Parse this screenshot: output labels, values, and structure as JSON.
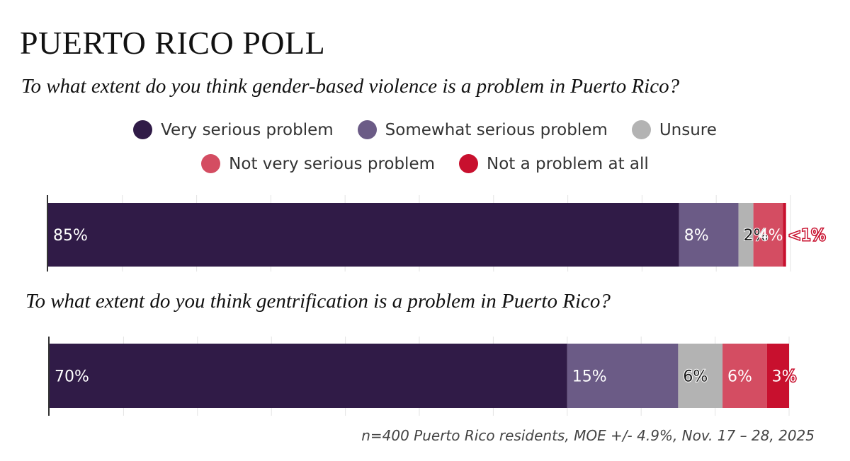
{
  "title": "PUERTO RICO POLL",
  "footer": "n=400 Puerto Rico residents, MOE +/- 4.9%, Nov. 17 – 28, 2025",
  "legend": [
    {
      "label": "Very serious problem",
      "color": "#301b47"
    },
    {
      "label": "Somewhat serious problem",
      "color": "#6b5b86"
    },
    {
      "label": "Unsure",
      "color": "#b3b3b3"
    },
    {
      "label": "Not very serious problem",
      "color": "#d44d62"
    },
    {
      "label": "Not a problem at all",
      "color": "#c8102e"
    }
  ],
  "chart_data": [
    {
      "type": "bar",
      "orientation": "horizontal",
      "stacked": true,
      "title": "To what extent do you think gender-based violence is a problem in Puerto Rico?",
      "xlim": [
        0,
        100
      ],
      "grid": true,
      "series": [
        {
          "name": "Very serious problem",
          "value": 85,
          "label": "85%"
        },
        {
          "name": "Somewhat serious problem",
          "value": 8,
          "label": "8%"
        },
        {
          "name": "Unsure",
          "value": 2,
          "label": "2%"
        },
        {
          "name": "Not very serious problem",
          "value": 4,
          "label": "4%"
        },
        {
          "name": "Not a problem at all",
          "value": 0.4,
          "label": "<1%"
        }
      ]
    },
    {
      "type": "bar",
      "orientation": "horizontal",
      "stacked": true,
      "title": "To what extent do you think gentrification is a problem in Puerto Rico?",
      "xlim": [
        0,
        100
      ],
      "grid": true,
      "series": [
        {
          "name": "Very serious problem",
          "value": 70,
          "label": "70%"
        },
        {
          "name": "Somewhat serious problem",
          "value": 15,
          "label": "15%"
        },
        {
          "name": "Unsure",
          "value": 6,
          "label": "6%"
        },
        {
          "name": "Not very serious problem",
          "value": 6,
          "label": "6%"
        },
        {
          "name": "Not a problem at all",
          "value": 3,
          "label": "3%"
        }
      ]
    }
  ]
}
